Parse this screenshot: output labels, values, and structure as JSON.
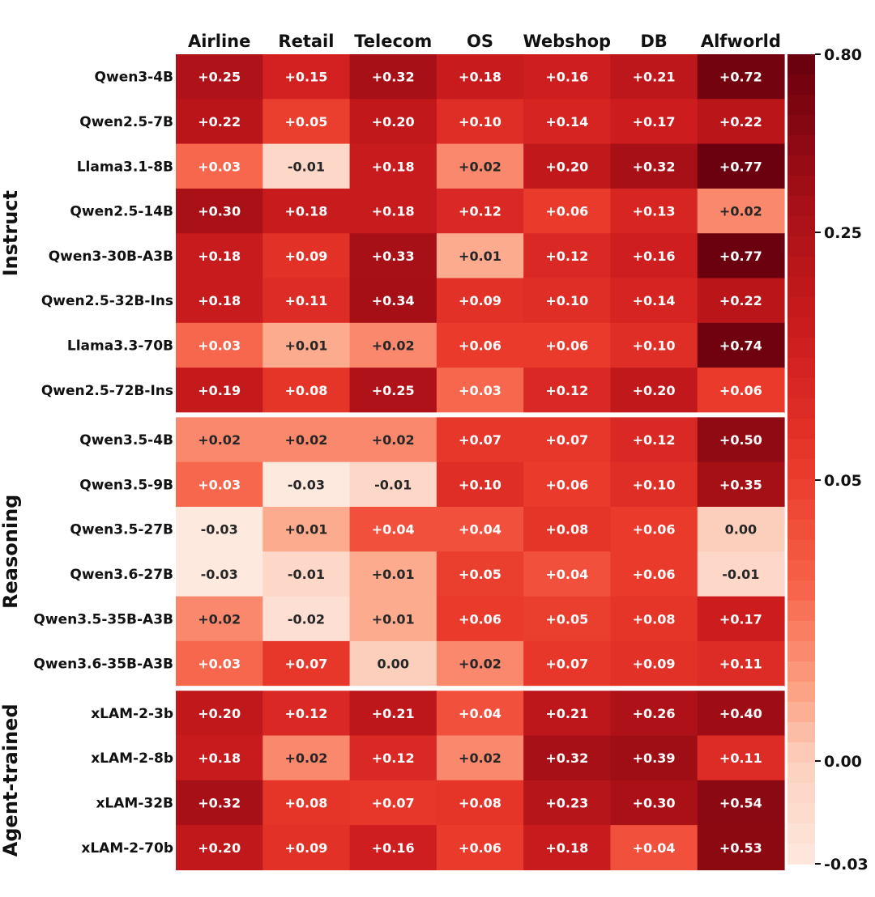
{
  "chart_data": {
    "type": "heatmap",
    "columns": [
      "Airline",
      "Retail",
      "Telecom",
      "OS",
      "Webshop",
      "DB",
      "Alfworld"
    ],
    "groups": [
      {
        "name": "Instruct",
        "rows": [
          {
            "label": "Qwen3-4B",
            "values": [
              0.25,
              0.15,
              0.32,
              0.18,
              0.16,
              0.21,
              0.72
            ]
          },
          {
            "label": "Qwen2.5-7B",
            "values": [
              0.22,
              0.05,
              0.2,
              0.1,
              0.14,
              0.17,
              0.22
            ]
          },
          {
            "label": "Llama3.1-8B",
            "values": [
              0.03,
              -0.01,
              0.18,
              0.02,
              0.2,
              0.32,
              0.77
            ]
          },
          {
            "label": "Qwen2.5-14B",
            "values": [
              0.3,
              0.18,
              0.18,
              0.12,
              0.06,
              0.13,
              0.02
            ]
          },
          {
            "label": "Qwen3-30B-A3B",
            "values": [
              0.18,
              0.09,
              0.33,
              0.01,
              0.12,
              0.16,
              0.77
            ]
          },
          {
            "label": "Qwen2.5-32B-Ins",
            "values": [
              0.18,
              0.11,
              0.34,
              0.09,
              0.1,
              0.14,
              0.22
            ]
          },
          {
            "label": "Llama3.3-70B",
            "values": [
              0.03,
              0.01,
              0.02,
              0.06,
              0.06,
              0.1,
              0.74
            ]
          },
          {
            "label": "Qwen2.5-72B-Ins",
            "values": [
              0.19,
              0.08,
              0.25,
              0.03,
              0.12,
              0.2,
              0.06
            ]
          }
        ]
      },
      {
        "name": "Reasoning",
        "rows": [
          {
            "label": "Qwen3.5-4B",
            "values": [
              0.02,
              0.02,
              0.02,
              0.07,
              0.07,
              0.12,
              0.5
            ]
          },
          {
            "label": "Qwen3.5-9B",
            "values": [
              0.03,
              -0.03,
              -0.01,
              0.1,
              0.06,
              0.1,
              0.35
            ]
          },
          {
            "label": "Qwen3.5-27B",
            "values": [
              -0.03,
              0.01,
              0.04,
              0.04,
              0.08,
              0.06,
              0.0
            ]
          },
          {
            "label": "Qwen3.6-27B",
            "values": [
              -0.03,
              -0.01,
              0.01,
              0.05,
              0.04,
              0.06,
              -0.01
            ]
          },
          {
            "label": "Qwen3.5-35B-A3B",
            "values": [
              0.02,
              -0.02,
              0.01,
              0.06,
              0.05,
              0.08,
              0.17
            ]
          },
          {
            "label": "Qwen3.6-35B-A3B",
            "values": [
              0.03,
              0.07,
              0.0,
              0.02,
              0.07,
              0.09,
              0.11
            ]
          }
        ]
      },
      {
        "name": "Agent-trained",
        "rows": [
          {
            "label": "xLAM-2-3b",
            "values": [
              0.2,
              0.12,
              0.21,
              0.04,
              0.21,
              0.26,
              0.4
            ]
          },
          {
            "label": "xLAM-2-8b",
            "values": [
              0.18,
              0.02,
              0.12,
              0.02,
              0.32,
              0.39,
              0.11
            ]
          },
          {
            "label": "xLAM-32B",
            "values": [
              0.32,
              0.08,
              0.07,
              0.08,
              0.23,
              0.3,
              0.54
            ]
          },
          {
            "label": "xLAM-2-70b",
            "values": [
              0.2,
              0.09,
              0.16,
              0.06,
              0.18,
              0.04,
              0.53
            ]
          }
        ]
      }
    ],
    "colorbar": {
      "ticks": [
        "0.80",
        "0.25",
        "0.05",
        "0.00",
        "-0.03"
      ],
      "tick_values": [
        0.8,
        0.25,
        0.05,
        0.0,
        -0.03
      ],
      "min": -0.03,
      "max": 0.8,
      "scale": "piecewise-nonlinear",
      "colormap": "Reds"
    },
    "colors": {
      "low": "#fee9df",
      "high": "#6f0512"
    },
    "title": "",
    "xlabel": "",
    "ylabel": ""
  }
}
